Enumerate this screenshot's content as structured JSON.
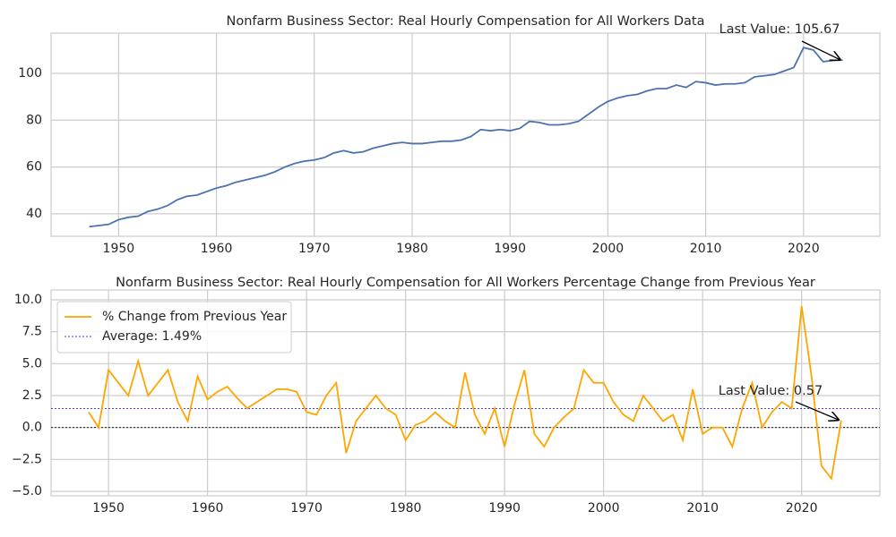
{
  "chart_data": [
    {
      "type": "line",
      "title": "Nonfarm Business Sector: Real Hourly Compensation for All Workers Data",
      "x": [
        1947,
        1948,
        1949,
        1950,
        1951,
        1952,
        1953,
        1954,
        1955,
        1956,
        1957,
        1958,
        1959,
        1960,
        1961,
        1962,
        1963,
        1964,
        1965,
        1966,
        1967,
        1968,
        1969,
        1970,
        1971,
        1972,
        1973,
        1974,
        1975,
        1976,
        1977,
        1978,
        1979,
        1980,
        1981,
        1982,
        1983,
        1984,
        1985,
        1986,
        1987,
        1988,
        1989,
        1990,
        1991,
        1992,
        1993,
        1994,
        1995,
        1996,
        1997,
        1998,
        1999,
        2000,
        2001,
        2002,
        2003,
        2004,
        2005,
        2006,
        2007,
        2008,
        2009,
        2010,
        2011,
        2012,
        2013,
        2014,
        2015,
        2016,
        2017,
        2018,
        2019,
        2020,
        2021,
        2022,
        2023,
        2024
      ],
      "series": [
        {
          "color": "#4c72b0",
          "values": [
            34.5,
            35,
            35.5,
            37.5,
            38.5,
            39,
            41,
            42,
            43.5,
            46,
            47.5,
            48,
            49.5,
            51,
            52,
            53.5,
            54.5,
            55.5,
            56.5,
            58,
            60,
            61.5,
            62.5,
            63,
            64,
            66,
            67,
            66,
            66.5,
            68,
            69,
            70,
            70.5,
            70,
            70,
            70.5,
            71,
            71,
            71.5,
            73,
            76,
            75.5,
            76,
            75.5,
            76.5,
            79.5,
            79,
            78,
            78,
            78.5,
            79.5,
            82.5,
            85.5,
            88,
            89.5,
            90.5,
            91,
            92.5,
            93.5,
            93.5,
            95,
            94,
            96.5,
            96,
            95,
            95.5,
            95.5,
            96,
            98.5,
            99,
            99.5,
            101,
            102.5,
            111,
            110,
            105,
            105.5,
            105.67
          ]
        }
      ],
      "annotation": {
        "text": "Last Value: 105.67"
      },
      "xlim": [
        1943.1,
        2027.8
      ],
      "xticks": [
        1950,
        1960,
        1970,
        1980,
        1990,
        2000,
        2010,
        2020
      ],
      "ylim": [
        30.4,
        117.2
      ],
      "yticks": [
        40,
        60,
        80,
        100
      ],
      "grid": true
    },
    {
      "type": "line",
      "title": "Nonfarm Business Sector: Real Hourly Compensation for All Workers Percentage Change from Previous Year",
      "x": [
        1948,
        1949,
        1950,
        1951,
        1952,
        1953,
        1954,
        1955,
        1956,
        1957,
        1958,
        1959,
        1960,
        1961,
        1962,
        1963,
        1964,
        1965,
        1966,
        1967,
        1968,
        1969,
        1970,
        1971,
        1972,
        1973,
        1974,
        1975,
        1976,
        1977,
        1978,
        1979,
        1980,
        1981,
        1982,
        1983,
        1984,
        1985,
        1986,
        1987,
        1988,
        1989,
        1990,
        1991,
        1992,
        1993,
        1994,
        1995,
        1996,
        1997,
        1998,
        1999,
        2000,
        2001,
        2002,
        2003,
        2004,
        2005,
        2006,
        2007,
        2008,
        2009,
        2010,
        2011,
        2012,
        2013,
        2014,
        2015,
        2016,
        2017,
        2018,
        2019,
        2020,
        2021,
        2022,
        2023,
        2024
      ],
      "series": [
        {
          "name": "% Change from Previous Year",
          "color": "orange",
          "values": [
            1.2,
            0,
            4.5,
            3.5,
            2.5,
            5.2,
            2.5,
            3.5,
            4.5,
            2,
            0.5,
            4,
            2.2,
            2.8,
            3.2,
            2.3,
            1.5,
            2,
            2.5,
            3,
            3,
            2.8,
            1.2,
            1,
            2.5,
            3.5,
            -2,
            0.5,
            1.5,
            2.5,
            1.5,
            1,
            -1,
            0.2,
            0.5,
            1.2,
            0.5,
            0,
            4.3,
            1,
            -0.5,
            1.5,
            -1.5,
            1.8,
            4.5,
            -0.5,
            -1.5,
            0,
            0.8,
            1.5,
            4.5,
            3.5,
            3.5,
            2,
            1,
            0.5,
            2.5,
            1.5,
            0.5,
            1,
            -1,
            3,
            -0.5,
            0,
            0,
            -1.5,
            1.5,
            3.5,
            0,
            1.2,
            2,
            1.5,
            9.5,
            4,
            -3,
            -4,
            0.57
          ]
        }
      ],
      "reference_lines": [
        {
          "name": "Average: 1.49%",
          "value": 1.49,
          "color": "blue"
        },
        {
          "value": 0,
          "color": "black"
        }
      ],
      "annotation": {
        "text": "Last Value: 0.57"
      },
      "legend": "upper left",
      "xlim": [
        1944.2,
        2027.9
      ],
      "xticks": [
        1950,
        1960,
        1970,
        1980,
        1990,
        2000,
        2010,
        2020
      ],
      "ylim": [
        -5.35,
        10.77
      ],
      "yticks": [
        {
          "value": 10,
          "label": "10.0"
        },
        7.5,
        {
          "value": 5,
          "label": "5.0"
        },
        2.5,
        {
          "value": 0,
          "label": "0.0"
        },
        {
          "value": -2.5,
          "label": "−2.5"
        },
        {
          "value": -5,
          "label": "−5.0"
        }
      ],
      "grid": true
    }
  ]
}
